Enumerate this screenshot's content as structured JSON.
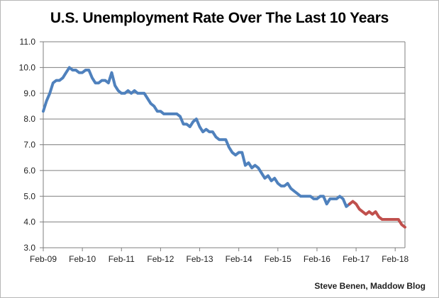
{
  "chart": {
    "title": "U.S. Unemployment Rate Over The Last 10 Years",
    "attribution": "Steve Benen, Maddow Blog"
  },
  "chart_data": {
    "type": "line",
    "title": "U.S. Unemployment Rate Over The Last 10 Years",
    "xlabel": "",
    "ylabel": "",
    "ylim": [
      3.0,
      11.0
    ],
    "grid": "horizontal-major",
    "legend": "none",
    "grid_color": "#7f7f7f",
    "axis_color": "#7f7f7f",
    "text_color": "#1f1f1f",
    "x": [
      "Feb-09",
      "Mar-09",
      "Apr-09",
      "May-09",
      "Jun-09",
      "Jul-09",
      "Aug-09",
      "Sep-09",
      "Oct-09",
      "Nov-09",
      "Dec-09",
      "Jan-10",
      "Feb-10",
      "Mar-10",
      "Apr-10",
      "May-10",
      "Jun-10",
      "Jul-10",
      "Aug-10",
      "Sep-10",
      "Oct-10",
      "Nov-10",
      "Dec-10",
      "Jan-11",
      "Feb-11",
      "Mar-11",
      "Apr-11",
      "May-11",
      "Jun-11",
      "Jul-11",
      "Aug-11",
      "Sep-11",
      "Oct-11",
      "Nov-11",
      "Dec-11",
      "Jan-12",
      "Feb-12",
      "Mar-12",
      "Apr-12",
      "May-12",
      "Jun-12",
      "Jul-12",
      "Aug-12",
      "Sep-12",
      "Oct-12",
      "Nov-12",
      "Dec-12",
      "Jan-13",
      "Feb-13",
      "Mar-13",
      "Apr-13",
      "May-13",
      "Jun-13",
      "Jul-13",
      "Aug-13",
      "Sep-13",
      "Oct-13",
      "Nov-13",
      "Dec-13",
      "Jan-14",
      "Feb-14",
      "Mar-14",
      "Apr-14",
      "May-14",
      "Jun-14",
      "Jul-14",
      "Aug-14",
      "Sep-14",
      "Oct-14",
      "Nov-14",
      "Dec-14",
      "Jan-15",
      "Feb-15",
      "Mar-15",
      "Apr-15",
      "May-15",
      "Jun-15",
      "Jul-15",
      "Aug-15",
      "Sep-15",
      "Oct-15",
      "Nov-15",
      "Dec-15",
      "Jan-16",
      "Feb-16",
      "Mar-16",
      "Apr-16",
      "May-16",
      "Jun-16",
      "Jul-16",
      "Aug-16",
      "Sep-16",
      "Oct-16",
      "Nov-16",
      "Dec-16",
      "Jan-17",
      "Feb-17",
      "Mar-17",
      "Apr-17",
      "May-17",
      "Jun-17",
      "Jul-17",
      "Aug-17",
      "Sep-17",
      "Oct-17",
      "Nov-17",
      "Dec-17",
      "Jan-18",
      "Feb-18",
      "Mar-18",
      "Apr-18",
      "May-18"
    ],
    "y": [
      8.3,
      8.7,
      9.0,
      9.4,
      9.5,
      9.5,
      9.6,
      9.8,
      10.0,
      9.9,
      9.9,
      9.8,
      9.8,
      9.9,
      9.9,
      9.6,
      9.4,
      9.4,
      9.5,
      9.5,
      9.4,
      9.8,
      9.3,
      9.1,
      9.0,
      9.0,
      9.1,
      9.0,
      9.1,
      9.0,
      9.0,
      9.0,
      8.8,
      8.6,
      8.5,
      8.3,
      8.3,
      8.2,
      8.2,
      8.2,
      8.2,
      8.2,
      8.1,
      7.8,
      7.8,
      7.7,
      7.9,
      8.0,
      7.7,
      7.5,
      7.6,
      7.5,
      7.5,
      7.3,
      7.2,
      7.2,
      7.2,
      6.9,
      6.7,
      6.6,
      6.7,
      6.7,
      6.2,
      6.3,
      6.1,
      6.2,
      6.1,
      5.9,
      5.7,
      5.8,
      5.6,
      5.7,
      5.5,
      5.4,
      5.4,
      5.5,
      5.3,
      5.2,
      5.1,
      5.0,
      5.0,
      5.0,
      5.0,
      4.9,
      4.9,
      5.0,
      5.0,
      4.7,
      4.9,
      4.9,
      4.9,
      5.0,
      4.9,
      4.6,
      4.7,
      4.8,
      4.7,
      4.5,
      4.4,
      4.3,
      4.4,
      4.3,
      4.4,
      4.2,
      4.1,
      4.1,
      4.1,
      4.1,
      4.1,
      4.1,
      3.9,
      3.8
    ],
    "segments": [
      {
        "name": "unemployment-line-blue",
        "color": "#4F81BD",
        "start": 0,
        "end": 94
      },
      {
        "name": "unemployment-line-red",
        "color": "#C0504D",
        "start": 94,
        "end": 111
      }
    ],
    "x_ticks": [
      {
        "i": 0,
        "label": "Feb-09"
      },
      {
        "i": 12,
        "label": "Feb-10"
      },
      {
        "i": 24,
        "label": "Feb-11"
      },
      {
        "i": 36,
        "label": "Feb-12"
      },
      {
        "i": 48,
        "label": "Feb-13"
      },
      {
        "i": 60,
        "label": "Feb-14"
      },
      {
        "i": 72,
        "label": "Feb-15"
      },
      {
        "i": 84,
        "label": "Feb-16"
      },
      {
        "i": 96,
        "label": "Feb-17"
      },
      {
        "i": 108,
        "label": "Feb-18"
      }
    ],
    "y_ticks": [
      {
        "v": 3,
        "label": "3.0"
      },
      {
        "v": 4,
        "label": "4.0"
      },
      {
        "v": 5,
        "label": "5.0"
      },
      {
        "v": 6,
        "label": "6.0"
      },
      {
        "v": 7,
        "label": "7.0"
      },
      {
        "v": 8,
        "label": "8.0"
      },
      {
        "v": 9,
        "label": "9.0"
      },
      {
        "v": 10,
        "label": "10.0"
      },
      {
        "v": 11,
        "label": "11.0"
      }
    ]
  }
}
